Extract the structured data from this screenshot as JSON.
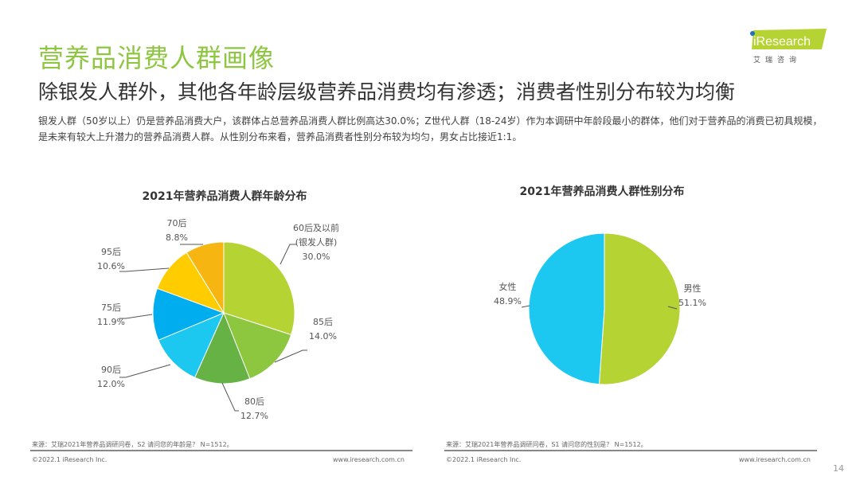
{
  "header": {
    "title": "营养品消费人群画像",
    "subtitle": "除银发人群外，其他各年龄层级营养品消费均有渗透；消费者性别分布较为均衡",
    "description": "银发人群（50岁以上）仍是营养品消费大户，该群体占总营养品消费人群比例高达30.0%；Z世代人群（18-24岁）作为本调研中年龄段最小的群体，他们对于营养品的消费已初具规模，是未来有较大上升潜力的营养品消费人群。从性别分布来看，营养品消费者性别分布较为均匀，男女占比接近1:1。"
  },
  "logo": {
    "text": "iResearch",
    "cn": "艾 瑞 咨 询",
    "color": "#B5D332"
  },
  "chart_data": [
    {
      "type": "pie",
      "title": "2021年营养品消费人群年龄分布",
      "slices": [
        {
          "label": "60后及以前",
          "sub": "(银发人群)",
          "value": 30.0,
          "display": "30.0%",
          "color": "#B5D332"
        },
        {
          "label": "85后",
          "value": 14.0,
          "display": "14.0%",
          "color": "#8DC63F"
        },
        {
          "label": "80后",
          "value": 12.7,
          "display": "12.7%",
          "color": "#66B245"
        },
        {
          "label": "90后",
          "value": 12.0,
          "display": "12.0%",
          "color": "#1CC7F0"
        },
        {
          "label": "75后",
          "value": 11.9,
          "display": "11.9%",
          "color": "#00AEEF"
        },
        {
          "label": "95后",
          "value": 10.6,
          "display": "10.6%",
          "color": "#FFCC00"
        },
        {
          "label": "70后",
          "value": 8.8,
          "display": "8.8%",
          "color": "#F7B512"
        }
      ]
    },
    {
      "type": "pie",
      "title": "2021年营养品消费人群性别分布",
      "slices": [
        {
          "label": "男性",
          "value": 51.1,
          "display": "51.1%",
          "color": "#B5D332"
        },
        {
          "label": "女性",
          "value": 48.9,
          "display": "48.9%",
          "color": "#1CC7F0"
        }
      ]
    }
  ],
  "sources": [
    "来源：艾瑞2021年营养品调研问卷，S2 请问您的年龄是？ N=1512。",
    "来源：艾瑞2021年营养品调研问卷，S1 请问您的性别是？ N=1512。"
  ],
  "footer": {
    "copyright": "©2022.1 iResearch Inc.",
    "url": "www.iresearch.com.cn",
    "page": "14"
  }
}
